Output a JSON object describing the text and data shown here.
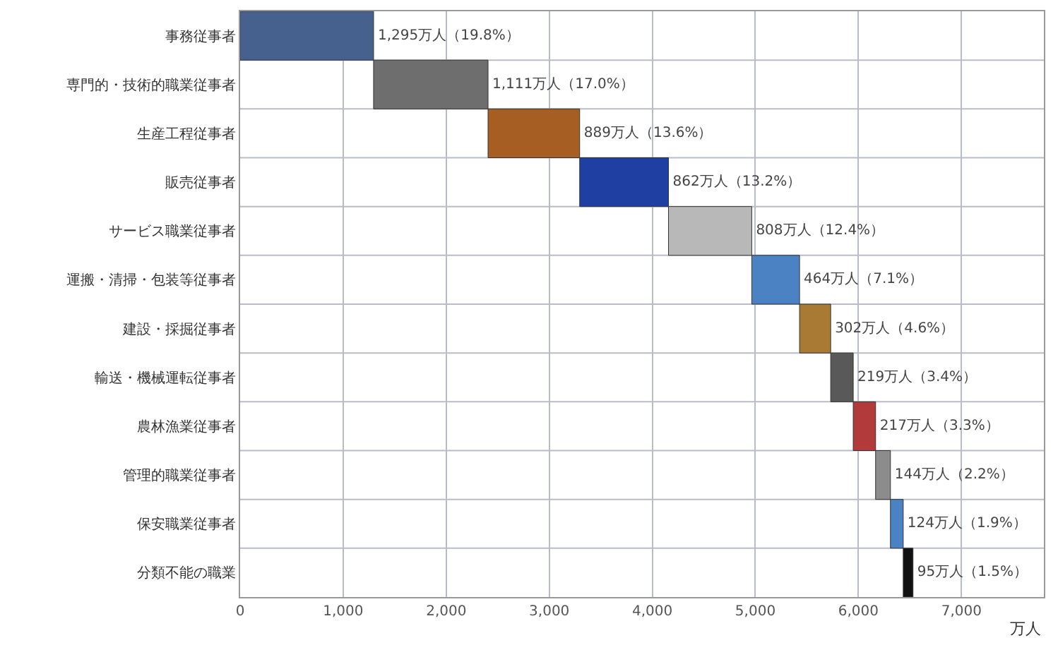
{
  "chart_data": {
    "type": "bar",
    "orientation": "horizontal",
    "xlabel": "万人",
    "categories": [
      "事務従事者",
      "専門的・技術的職業従事者",
      "生産工程従事者",
      "販売従事者",
      "サービス職業従事者",
      "運搬・清掃・包装等従事者",
      "建設・採掘従事者",
      "輸送・機械運転従事者",
      "農林漁業従事者",
      "管理的職業従事者",
      "保安職業従事者",
      "分類不能の職業"
    ],
    "values": [
      1295,
      1111,
      889,
      862,
      808,
      464,
      302,
      219,
      217,
      144,
      124,
      95
    ],
    "base": [
      0,
      1295,
      2406,
      3295,
      4157,
      4965,
      5429,
      5731,
      5950,
      6167,
      6311,
      6435
    ],
    "colors": [
      "#47618f",
      "#6e6e6e",
      "#a65e22",
      "#1f3fa3",
      "#b8b8b8",
      "#4a82c4",
      "#a87a34",
      "#595959",
      "#b33a3a",
      "#8c8c8c",
      "#4a82c4",
      "#111111"
    ],
    "value_labels": [
      "1,295万人（19.8%）",
      "1,111万人（17.0%）",
      "889万人（13.6%）",
      "862万人（13.2%）",
      "808万人（12.4%）",
      "464万人（7.1%）",
      "302万人（4.6%）",
      "219万人（3.4%）",
      "217万人（3.3%）",
      "144万人（2.2%）",
      "124万人（1.9%）",
      "95万人（1.5%）"
    ],
    "xlim": [
      0,
      7800
    ],
    "xticks": [
      0,
      {
        "value": 1000,
        "label": "1,000"
      },
      {
        "value": 2000,
        "label": "2,000"
      },
      {
        "value": 3000,
        "label": "3,000"
      },
      {
        "value": 4000,
        "label": "4,000"
      },
      {
        "value": 5000,
        "label": "5,000"
      },
      {
        "value": 6000,
        "label": "6,000"
      },
      {
        "value": 7000,
        "label": "7,000"
      }
    ],
    "grid": true
  }
}
